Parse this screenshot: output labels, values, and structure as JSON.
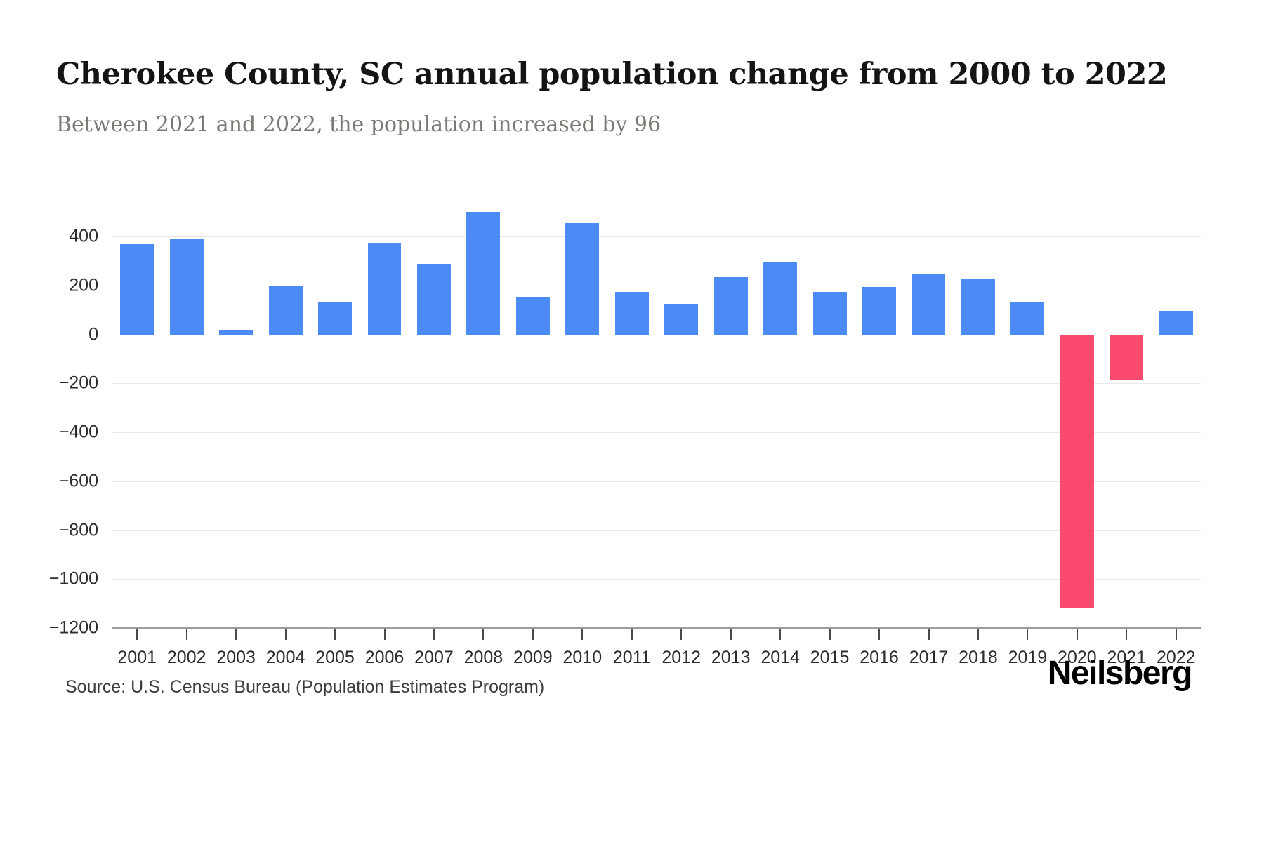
{
  "header": {
    "title": "Cherokee County, SC annual population change from 2000 to 2022",
    "subtitle": "Between 2021 and 2022, the population increased by 96"
  },
  "footer": {
    "source": "Source: U.S. Census Bureau (Population Estimates Program)",
    "brand": "Neilsberg"
  },
  "chart_data": {
    "type": "bar",
    "title": "Cherokee County, SC annual population change from 2000 to 2022",
    "subtitle": "Between 2021 and 2022, the population increased by 96",
    "xlabel": "",
    "ylabel": "",
    "categories": [
      "2001",
      "2002",
      "2003",
      "2004",
      "2005",
      "2006",
      "2007",
      "2008",
      "2009",
      "2010",
      "2011",
      "2012",
      "2013",
      "2014",
      "2015",
      "2016",
      "2017",
      "2018",
      "2019",
      "2020",
      "2021",
      "2022"
    ],
    "values": [
      370,
      390,
      20,
      200,
      130,
      375,
      290,
      500,
      155,
      455,
      175,
      125,
      235,
      295,
      175,
      195,
      245,
      225,
      135,
      -1120,
      -185,
      96
    ],
    "ylim": [
      -1200,
      550
    ],
    "yticks": [
      400,
      200,
      0,
      -200,
      -400,
      -600,
      -800,
      -1000,
      -1200
    ],
    "ytick_labels": [
      "400",
      "200",
      "0",
      "−200",
      "−400",
      "−600",
      "−800",
      "−1000",
      "−1200"
    ],
    "grid": true,
    "legend_position": "none",
    "colors": {
      "positive": "#4c8bf5",
      "negative": "#fa4b6e",
      "gridline": "#e9e9e9",
      "axis": "#9b9b9b"
    }
  }
}
